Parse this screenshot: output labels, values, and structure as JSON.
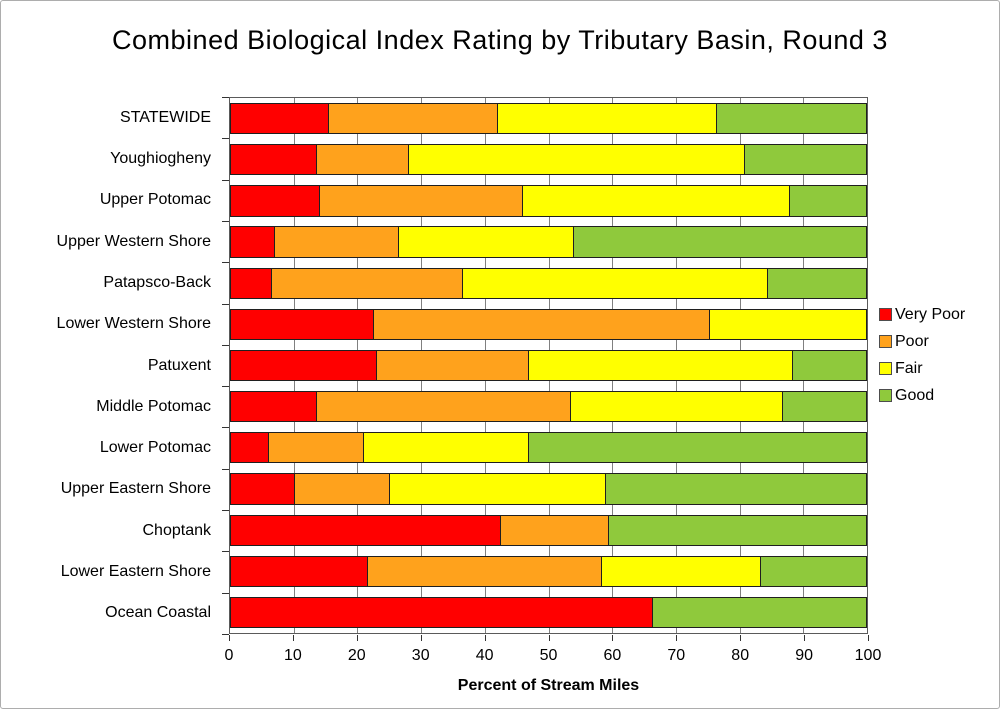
{
  "title": "Combined Biological Index Rating by Tributary Basin, Round 3",
  "chart_data": {
    "type": "bar",
    "orientation": "horizontal",
    "stacked": true,
    "title": "Combined Biological Index Rating by Tributary Basin, Round 3",
    "xlabel": "Percent of Stream Miles",
    "xlim": [
      0,
      100
    ],
    "x_ticks": [
      0,
      10,
      20,
      30,
      40,
      50,
      60,
      70,
      80,
      90,
      100
    ],
    "grid": "vertical",
    "legend_position": "right",
    "categories": [
      "STATEWIDE",
      "Youghiogheny",
      "Upper Potomac",
      "Upper Western Shore",
      "Patapsco-Back",
      "Lower Western Shore",
      "Patuxent",
      "Middle Potomac",
      "Lower Potomac",
      "Upper Eastern Shore",
      "Choptank",
      "Lower Eastern Shore",
      "Ocean Coastal"
    ],
    "series": [
      {
        "name": "Very Poor",
        "color": "#ff0000",
        "values": [
          15.5,
          13.5,
          14,
          7,
          6.5,
          22.5,
          23,
          13.5,
          6,
          10,
          42.5,
          21.5,
          66.5
        ]
      },
      {
        "name": "Poor",
        "color": "#ffa21c",
        "values": [
          26.5,
          14.5,
          32,
          19.5,
          30,
          53,
          24,
          40,
          15,
          15,
          17,
          37,
          0
        ]
      },
      {
        "name": "Fair",
        "color": "#ffff00",
        "values": [
          34.5,
          53,
          42,
          27.5,
          48,
          24.5,
          41.5,
          33.5,
          26,
          34,
          0,
          25,
          0
        ]
      },
      {
        "name": "Good",
        "color": "#8fc93c",
        "values": [
          23.5,
          19,
          12,
          46,
          15.5,
          0,
          11.5,
          13,
          53,
          41,
          40.5,
          16.5,
          33.5
        ]
      }
    ]
  }
}
